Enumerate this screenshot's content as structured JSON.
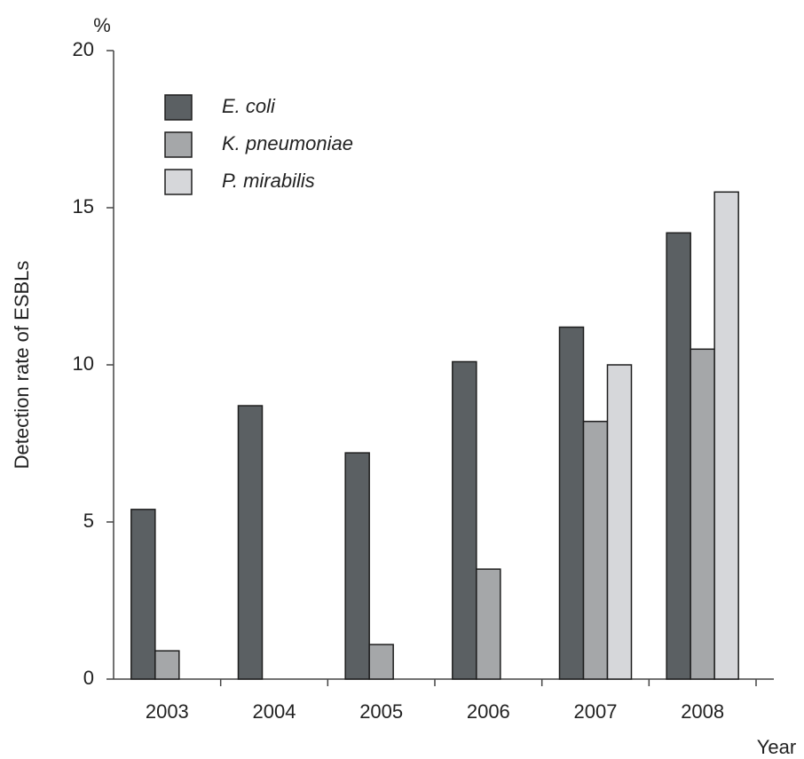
{
  "chart_data": {
    "type": "bar",
    "y_unit": "%",
    "y_axis_label": "Detection rate of ESBLs",
    "x_axis_label": "Year",
    "categories": [
      "2003",
      "2004",
      "2005",
      "2006",
      "2007",
      "2008"
    ],
    "series": [
      {
        "name": "E. coli",
        "color": "#5b6063",
        "values": [
          5.4,
          8.7,
          7.2,
          10.1,
          11.2,
          14.2
        ]
      },
      {
        "name": "K. pneumoniae",
        "color": "#a5a7a9",
        "values": [
          0.9,
          null,
          1.1,
          3.5,
          8.2,
          10.5
        ]
      },
      {
        "name": "P. mirabilis",
        "color": "#d6d7da",
        "values": [
          null,
          null,
          null,
          null,
          10.0,
          15.5
        ]
      }
    ],
    "ylim": [
      0,
      20
    ],
    "yticks": [
      0,
      5,
      10,
      15,
      20
    ],
    "legend": "upper left"
  }
}
